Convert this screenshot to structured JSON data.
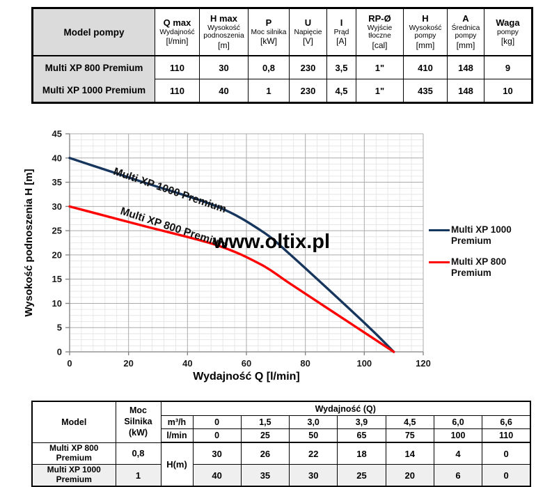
{
  "tables": {
    "top": {
      "header": [
        {
          "title": "Model pompy",
          "sub": "",
          "unit": ""
        },
        {
          "title": "Q max",
          "sub": "Wydajność",
          "unit": "[l/min]"
        },
        {
          "title": "H max",
          "sub": "Wysokość podnoszenia",
          "unit": "[m]"
        },
        {
          "title": "P",
          "sub": "Moc silnika",
          "unit": "[kW]"
        },
        {
          "title": "U",
          "sub": "Napięcie",
          "unit": "[V]"
        },
        {
          "title": "I",
          "sub": "Prąd",
          "unit": "[A]"
        },
        {
          "title": "RP-Ø",
          "sub": "Wyjście tłoczne",
          "unit": "[cal]"
        },
        {
          "title": "H",
          "sub": "Wysokość pompy",
          "unit": "[mm]"
        },
        {
          "title": "A",
          "sub": "Średnica pompy",
          "unit": "[mm]"
        },
        {
          "title": "Waga",
          "sub": "pompy",
          "unit": "[kg]"
        }
      ],
      "rows": [
        {
          "model": "Multi XP 800 Premium",
          "values": [
            "110",
            "30",
            "0,8",
            "230",
            "3,5",
            "1\"",
            "410",
            "148",
            "9"
          ]
        },
        {
          "model": "Multi XP 1000 Premium",
          "values": [
            "110",
            "40",
            "1",
            "230",
            "4,5",
            "1\"",
            "435",
            "148",
            "10"
          ]
        }
      ]
    },
    "bottom": {
      "header": {
        "model": "Model",
        "power": "Moc Silnika (kW)",
        "flow_group": "Wydajność (Q)",
        "unit_m3h": "m³/h",
        "unit_lmin": "l/min",
        "head_label": "H(m)"
      },
      "m3h": [
        "0",
        "1,5",
        "3,0",
        "3,9",
        "4,5",
        "6,0",
        "6,6"
      ],
      "lmin": [
        "0",
        "25",
        "50",
        "65",
        "75",
        "100",
        "110"
      ],
      "rows": [
        {
          "model": "Multi XP 800 Premium",
          "power": "0,8",
          "values": [
            "30",
            "26",
            "22",
            "18",
            "14",
            "4",
            "0"
          ]
        },
        {
          "model": "Multi XP 1000 Premium",
          "power": "1",
          "values": [
            "40",
            "35",
            "30",
            "25",
            "20",
            "6",
            "0"
          ]
        }
      ]
    }
  },
  "chart_data": {
    "type": "line",
    "title": "",
    "xlabel": "Wydajność Q [l/min]",
    "ylabel": "Wysokość podnoszenia H [m]",
    "xlim": [
      0,
      120
    ],
    "ylim": [
      0,
      45
    ],
    "xticks": [
      0,
      20,
      40,
      60,
      80,
      100,
      120
    ],
    "yticks": [
      0,
      5,
      10,
      15,
      20,
      25,
      30,
      35,
      40,
      45
    ],
    "minor_step_x": 4,
    "minor_step_y": 1.25,
    "grid": true,
    "legend_position": "right",
    "watermark": "www.oltix.pl",
    "x": [
      0,
      25,
      50,
      65,
      75,
      100,
      110
    ],
    "series": [
      {
        "name": "Multi XP 1000 Premium",
        "color": "#17365D",
        "values": [
          40,
          35,
          30,
          25,
          20,
          6,
          0
        ]
      },
      {
        "name": "Multi XP 800 Premium",
        "color": "#FF0000",
        "values": [
          30,
          26,
          22,
          18,
          14,
          4,
          0
        ]
      }
    ]
  }
}
